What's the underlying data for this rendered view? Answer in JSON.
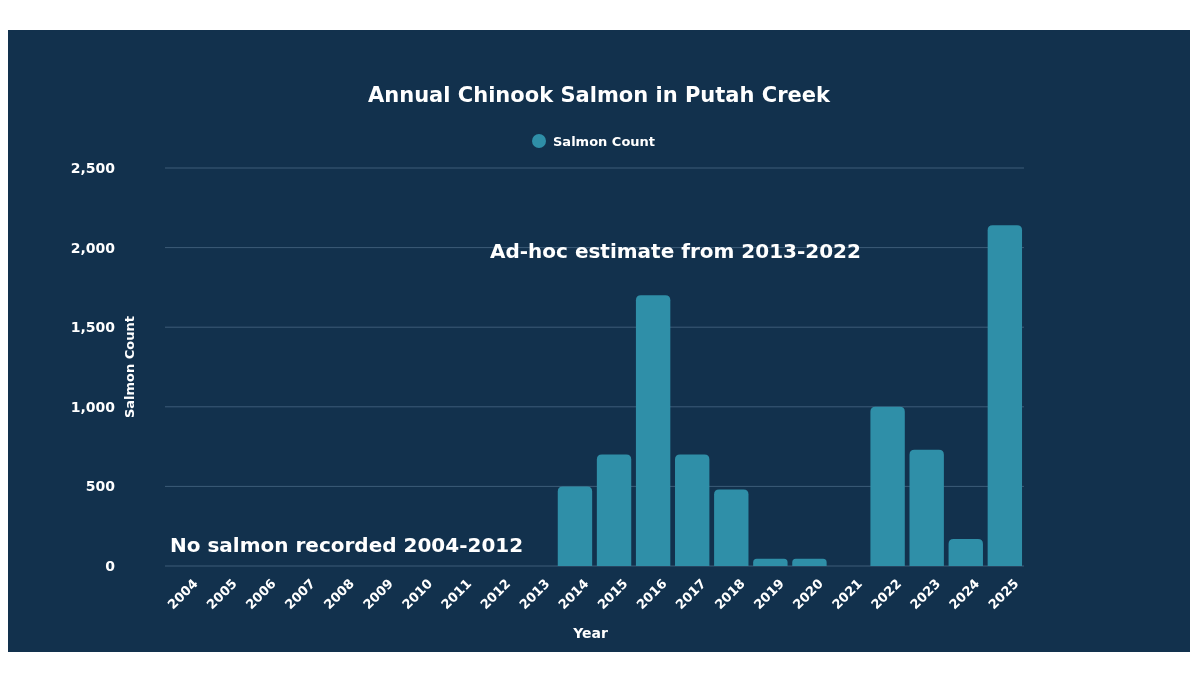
{
  "chart_data": {
    "type": "bar",
    "title": "Annual Chinook Salmon in Putah Creek",
    "xlabel": "Year",
    "ylabel": "Salmon Count",
    "categories": [
      "2004",
      "2005",
      "2006",
      "2007",
      "2008",
      "2009",
      "2010",
      "2011",
      "2012",
      "2013",
      "2014",
      "2015",
      "2016",
      "2017",
      "2018",
      "2019",
      "2020",
      "2021",
      "2022",
      "2023",
      "2024",
      "2025"
    ],
    "series": [
      {
        "name": "Salmon Count",
        "color": "#2f8fa8",
        "values": [
          0,
          0,
          0,
          0,
          0,
          0,
          0,
          0,
          0,
          0,
          500,
          700,
          1700,
          700,
          480,
          45,
          45,
          0,
          1000,
          730,
          170,
          2140
        ]
      }
    ],
    "ylim": [
      0,
      2500
    ],
    "yticks": [
      {
        "value": 0,
        "label": "0"
      },
      {
        "value": 500,
        "label": "500"
      },
      {
        "value": 1000,
        "label": "1,000"
      },
      {
        "value": 1500,
        "label": "1,500"
      },
      {
        "value": 2000,
        "label": "2,000"
      },
      {
        "value": 2500,
        "label": "2,500"
      }
    ],
    "grid": "y",
    "legend": "top",
    "annotations": [
      "Ad-hoc estimate from 2013-2022",
      "No salmon recorded 2004-2012"
    ]
  }
}
